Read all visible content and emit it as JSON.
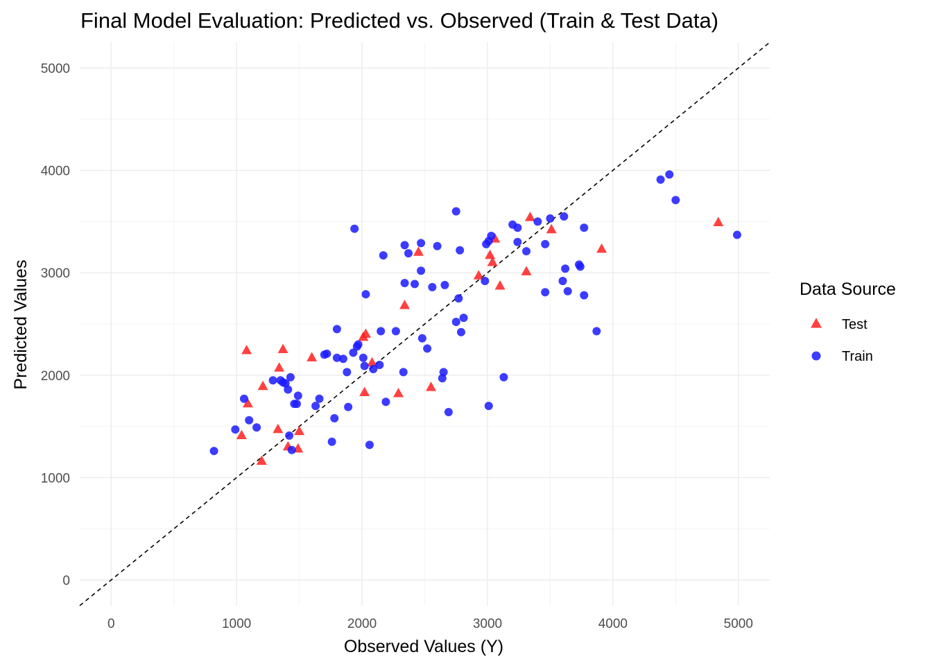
{
  "chart_data": {
    "type": "scatter",
    "title": "Final Model Evaluation: Predicted vs. Observed (Train & Test Data)",
    "xlabel": "Observed Values (Y)",
    "ylabel": "Predicted Values",
    "xlim": [
      -250,
      5250
    ],
    "ylim": [
      -250,
      5250
    ],
    "xticks": [
      0,
      1000,
      2000,
      3000,
      4000,
      5000
    ],
    "yticks": [
      0,
      1000,
      2000,
      3000,
      4000,
      5000
    ],
    "xtick_labels": [
      "0",
      "1000",
      "2000",
      "3000",
      "4000",
      "5000"
    ],
    "ytick_labels": [
      "0",
      "1000",
      "2000",
      "3000",
      "4000",
      "5000"
    ],
    "grid": true,
    "legend": {
      "title": "Data Source",
      "position": "right",
      "entries": [
        {
          "label": "Test",
          "color": "#ff2020",
          "shape": "triangle"
        },
        {
          "label": "Train",
          "color": "#1a1aff",
          "shape": "circle"
        }
      ]
    },
    "reference_line": {
      "slope": 1,
      "intercept": 0,
      "style": "dashed",
      "color": "#000000"
    },
    "series": [
      {
        "name": "Test",
        "color": "#ff2020",
        "shape": "triangle",
        "points": [
          [
            1040,
            1410
          ],
          [
            1080,
            2240
          ],
          [
            1090,
            1720
          ],
          [
            1200,
            1160
          ],
          [
            1210,
            1890
          ],
          [
            1330,
            1470
          ],
          [
            1340,
            2070
          ],
          [
            1370,
            2250
          ],
          [
            1410,
            1300
          ],
          [
            1490,
            1280
          ],
          [
            1500,
            1450
          ],
          [
            1600,
            2170
          ],
          [
            2010,
            2370
          ],
          [
            2020,
            1830
          ],
          [
            2030,
            2400
          ],
          [
            2080,
            2120
          ],
          [
            2290,
            1820
          ],
          [
            2340,
            2680
          ],
          [
            2450,
            3200
          ],
          [
            2550,
            1880
          ],
          [
            2930,
            2970
          ],
          [
            3020,
            3170
          ],
          [
            3040,
            3100
          ],
          [
            3060,
            3330
          ],
          [
            3100,
            2870
          ],
          [
            3310,
            3010
          ],
          [
            3340,
            3540
          ],
          [
            3510,
            3420
          ],
          [
            3910,
            3230
          ],
          [
            4840,
            3490
          ]
        ]
      },
      {
        "name": "Train",
        "color": "#1a1aff",
        "shape": "circle",
        "points": [
          [
            820,
            1260
          ],
          [
            990,
            1470
          ],
          [
            1060,
            1770
          ],
          [
            1100,
            1560
          ],
          [
            1160,
            1490
          ],
          [
            1290,
            1950
          ],
          [
            1350,
            1950
          ],
          [
            1370,
            1930
          ],
          [
            1390,
            1920
          ],
          [
            1410,
            1860
          ],
          [
            1420,
            1410
          ],
          [
            1430,
            1980
          ],
          [
            1440,
            1270
          ],
          [
            1460,
            1720
          ],
          [
            1480,
            1720
          ],
          [
            1490,
            1800
          ],
          [
            1630,
            1700
          ],
          [
            1660,
            1770
          ],
          [
            1700,
            2200
          ],
          [
            1720,
            2210
          ],
          [
            1760,
            1350
          ],
          [
            1780,
            1580
          ],
          [
            1800,
            2450
          ],
          [
            1800,
            2170
          ],
          [
            1850,
            2160
          ],
          [
            1880,
            2030
          ],
          [
            1890,
            1690
          ],
          [
            1930,
            2220
          ],
          [
            1940,
            3430
          ],
          [
            1960,
            2280
          ],
          [
            1970,
            2300
          ],
          [
            2010,
            2170
          ],
          [
            2020,
            2090
          ],
          [
            2030,
            2790
          ],
          [
            2060,
            1320
          ],
          [
            2090,
            2060
          ],
          [
            2140,
            2100
          ],
          [
            2150,
            2430
          ],
          [
            2170,
            3170
          ],
          [
            2190,
            1740
          ],
          [
            2270,
            2430
          ],
          [
            2330,
            2030
          ],
          [
            2340,
            2900
          ],
          [
            2340,
            3270
          ],
          [
            2370,
            3190
          ],
          [
            2420,
            2890
          ],
          [
            2470,
            3290
          ],
          [
            2470,
            3020
          ],
          [
            2480,
            2360
          ],
          [
            2520,
            2260
          ],
          [
            2560,
            2860
          ],
          [
            2600,
            3260
          ],
          [
            2640,
            1970
          ],
          [
            2650,
            2030
          ],
          [
            2660,
            2880
          ],
          [
            2690,
            1640
          ],
          [
            2750,
            3600
          ],
          [
            2750,
            2520
          ],
          [
            2770,
            2750
          ],
          [
            2780,
            3220
          ],
          [
            2790,
            2420
          ],
          [
            2810,
            2560
          ],
          [
            2980,
            2920
          ],
          [
            2990,
            3280
          ],
          [
            3010,
            3310
          ],
          [
            3010,
            1700
          ],
          [
            3030,
            3360
          ],
          [
            3130,
            1980
          ],
          [
            3200,
            3470
          ],
          [
            3240,
            3440
          ],
          [
            3240,
            3300
          ],
          [
            3310,
            3210
          ],
          [
            3400,
            3500
          ],
          [
            3460,
            3280
          ],
          [
            3460,
            2810
          ],
          [
            3500,
            3530
          ],
          [
            3600,
            2920
          ],
          [
            3610,
            3550
          ],
          [
            3620,
            3040
          ],
          [
            3640,
            2820
          ],
          [
            3730,
            3080
          ],
          [
            3740,
            3060
          ],
          [
            3770,
            3440
          ],
          [
            3770,
            2780
          ],
          [
            3870,
            2430
          ],
          [
            4380,
            3910
          ],
          [
            4450,
            3960
          ],
          [
            4500,
            3710
          ],
          [
            4990,
            3370
          ]
        ]
      }
    ]
  }
}
